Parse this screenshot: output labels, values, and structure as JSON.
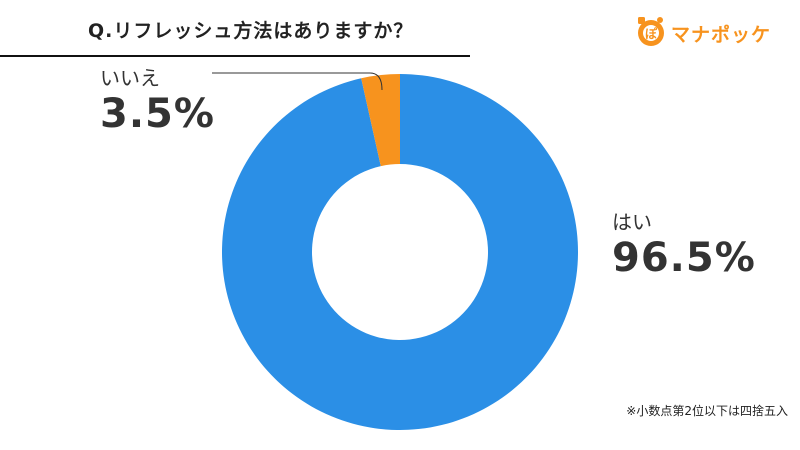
{
  "title": "Q.リフレッシュ方法はありますか？",
  "brand": {
    "name": "マナポッケ",
    "logo_glyph": "ぽ",
    "accent": "#F7931E"
  },
  "footnote": "※小数点第2位以下は四捨五入",
  "chart_data": {
    "type": "pie",
    "variant": "donut",
    "title": "Q.リフレッシュ方法はありますか？",
    "series": [
      {
        "name": "はい",
        "value": 96.5,
        "label": "96.5%",
        "color": "#2B8FE6"
      },
      {
        "name": "いいえ",
        "value": 3.5,
        "label": "3.5%",
        "color": "#F7931E"
      }
    ],
    "start_angle": "12 o'clock",
    "direction": "clockwise"
  }
}
